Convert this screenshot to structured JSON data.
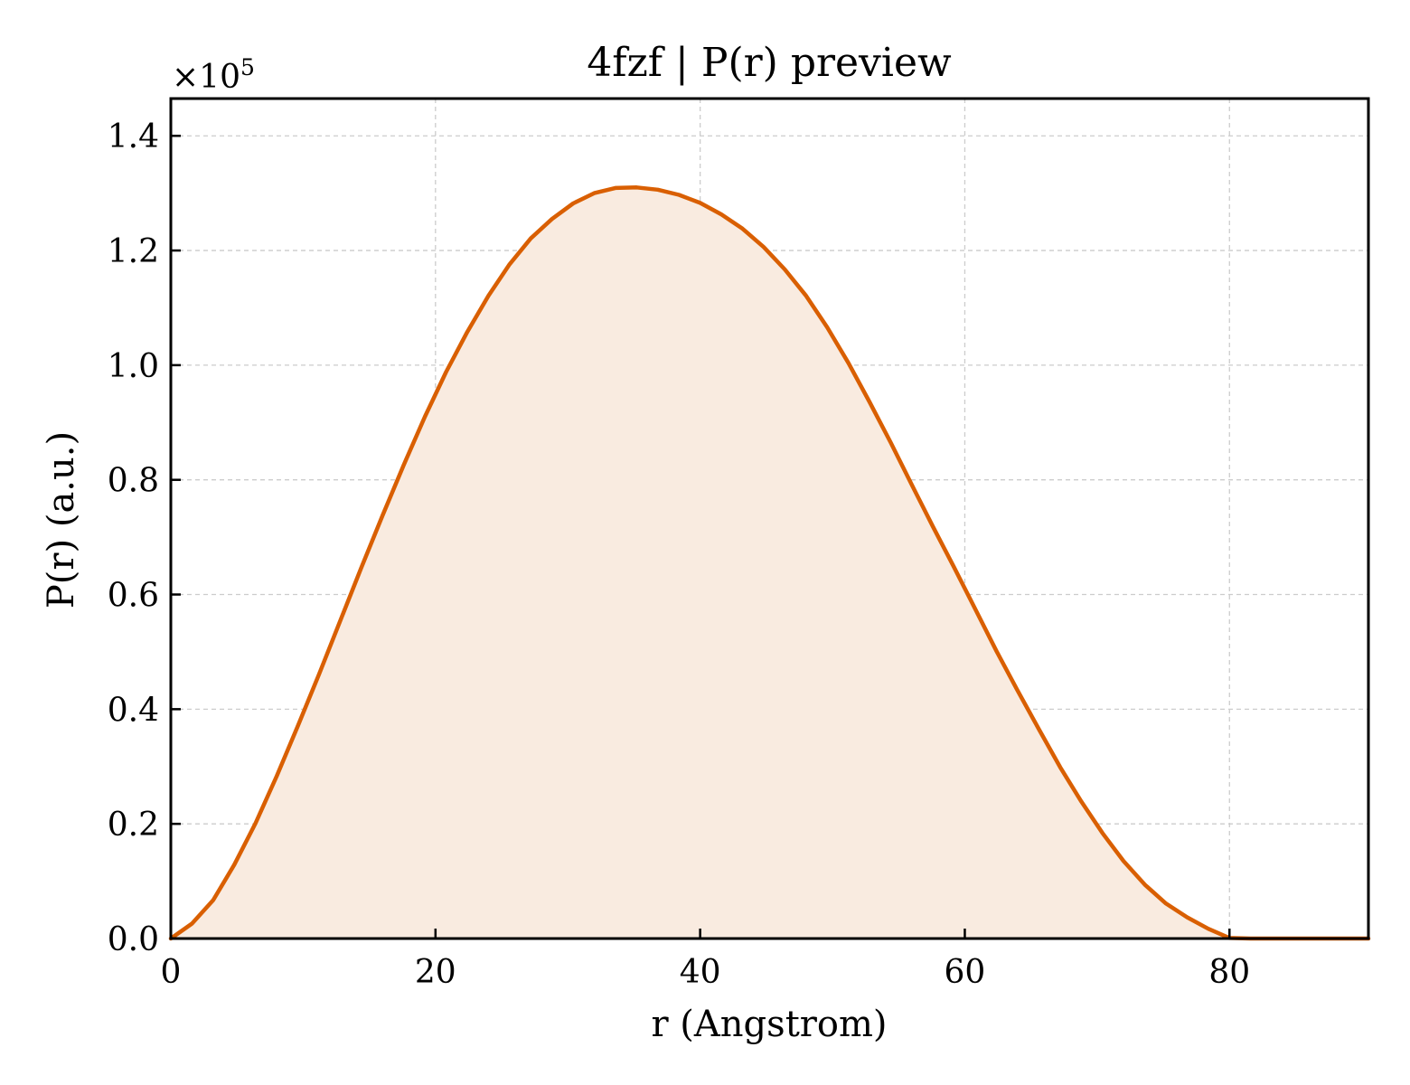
{
  "chart_data": {
    "type": "area",
    "title": "4fzf | P(r) preview",
    "xlabel": "r (Angstrom)",
    "ylabel": "P(r) (a.u.)",
    "y_multiplier_label": "×10",
    "y_multiplier_exponent": "5",
    "xlim": [
      0,
      90.5
    ],
    "ylim": [
      0,
      1.465
    ],
    "x_ticks": [
      0,
      20,
      40,
      60,
      80
    ],
    "x_tick_labels": [
      "0",
      "20",
      "40",
      "60",
      "80"
    ],
    "y_ticks": [
      0,
      0.2,
      0.4,
      0.6,
      0.8,
      1.0,
      1.2,
      1.4
    ],
    "y_tick_labels": [
      "0.0",
      "0.2",
      "0.4",
      "0.6",
      "0.8",
      "1.0",
      "1.2",
      "1.4"
    ],
    "grid": true,
    "line_color": "#d95f02",
    "fill_color": "#f9ebe0",
    "series": [
      {
        "x": [
          0,
          1.6,
          3.2,
          4.8,
          6.4,
          8.0,
          9.6,
          11.2,
          12.8,
          14.4,
          16.0,
          17.6,
          19.2,
          20.8,
          22.4,
          24.0,
          25.6,
          27.2,
          28.8,
          30.4,
          32.0,
          33.6,
          35.2,
          36.8,
          38.4,
          40.0,
          41.6,
          43.2,
          44.8,
          46.4,
          48.0,
          49.6,
          51.2,
          52.8,
          54.4,
          56.0,
          57.6,
          59.2,
          60.8,
          62.4,
          64.0,
          65.6,
          67.2,
          68.8,
          70.4,
          72.0,
          73.6,
          75.2,
          76.8,
          78.4,
          80.0,
          81.6,
          83.2,
          84.8,
          86.4,
          88.0,
          89.6,
          90.5
        ],
        "y": [
          0.0,
          0.026,
          0.067,
          0.129,
          0.201,
          0.283,
          0.371,
          0.461,
          0.554,
          0.647,
          0.738,
          0.826,
          0.91,
          0.988,
          1.058,
          1.121,
          1.176,
          1.221,
          1.255,
          1.282,
          1.3,
          1.309,
          1.31,
          1.306,
          1.297,
          1.283,
          1.263,
          1.238,
          1.206,
          1.167,
          1.121,
          1.066,
          1.004,
          0.936,
          0.865,
          0.791,
          0.718,
          0.647,
          0.574,
          0.501,
          0.432,
          0.365,
          0.299,
          0.239,
          0.184,
          0.135,
          0.094,
          0.061,
          0.037,
          0.017,
          0.001,
          -0.013,
          -0.023,
          -0.029,
          -0.029,
          -0.028,
          -0.022,
          -0.028
        ]
      }
    ]
  }
}
